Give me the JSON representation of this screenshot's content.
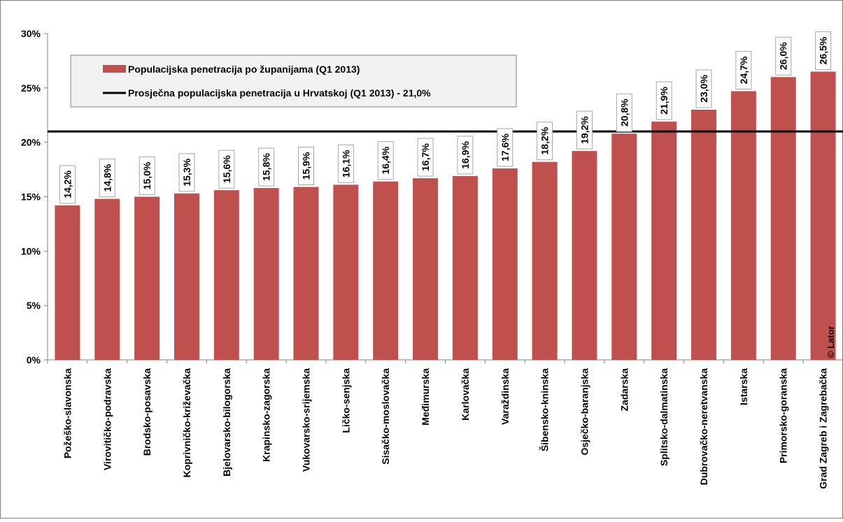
{
  "chart_data": {
    "type": "bar",
    "categories": [
      "Požeško-slavonska",
      "Virovitičko-podravska",
      "Brodsko-posavska",
      "Koprivničko-križevačka",
      "Bjelovarsko-bilogorska",
      "Krapinsko-zagorska",
      "Vukovarsko-srijemska",
      "Ličko-senjska",
      "Sisačko-moslovačka",
      "Međimurska",
      "Karlovačka",
      "Varaždinska",
      "Šibensko-kninska",
      "Osječko-baranjska",
      "Zadarska",
      "Splitsko-dalmatinska",
      "Dubrovačko-neretvanska",
      "Istarska",
      "Primorsko-goranska",
      "Grad Zagreb i Zagrebačka"
    ],
    "series": [
      {
        "name": "Populacijska penetracija po županijama (Q1 2013)",
        "color": "#c0504d",
        "values": [
          14.2,
          14.8,
          15.0,
          15.3,
          15.6,
          15.8,
          15.9,
          16.1,
          16.4,
          16.7,
          16.9,
          17.6,
          18.2,
          19.2,
          20.8,
          21.9,
          23.0,
          24.7,
          26.0,
          26.5
        ]
      }
    ],
    "value_labels": [
      "14,2%",
      "14,8%",
      "15,0%",
      "15,3%",
      "15,6%",
      "15,8%",
      "15,9%",
      "16,1%",
      "16,4%",
      "16,7%",
      "16,9%",
      "17,6%",
      "18,2%",
      "19,2%",
      "20,8%",
      "21,9%",
      "23,0%",
      "24,7%",
      "26,0%",
      "26,5%"
    ],
    "reference_line": {
      "name": "Prosječna populacijska penetracija u Hrvatskoj (Q1 2013) - 21,0%",
      "value": 21.0,
      "color": "#000000"
    },
    "yticks": [
      0,
      5,
      10,
      15,
      20,
      25,
      30
    ],
    "ytick_labels": [
      "0%",
      "5%",
      "10%",
      "15%",
      "20%",
      "25%",
      "30%"
    ],
    "ylim": [
      0,
      30
    ],
    "xlabel": "",
    "ylabel": "",
    "title": "",
    "grid": false,
    "legend_position": "top-left",
    "watermark": "© Lator"
  }
}
